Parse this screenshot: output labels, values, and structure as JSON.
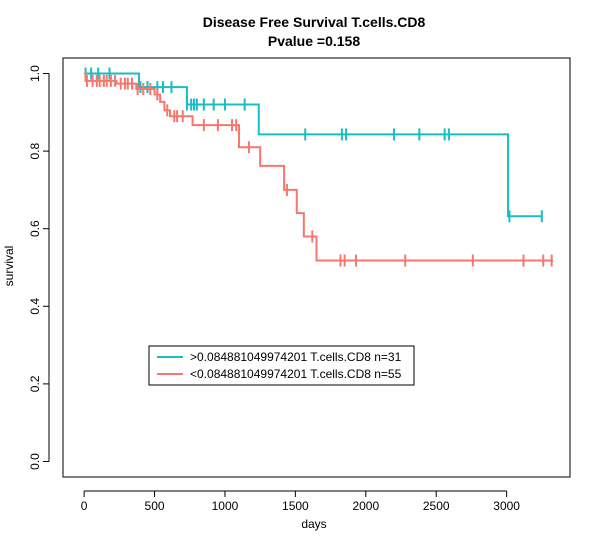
{
  "chart_data": {
    "type": "line",
    "title": "Disease Free Survival T.cells.CD8",
    "subtitle": "Pvalue =0.158",
    "xlabel": "days",
    "ylabel": "survival",
    "xlim": [
      -150,
      3450
    ],
    "ylim": [
      -0.04,
      1.04
    ],
    "x_ticks": [
      0,
      500,
      1000,
      1500,
      2000,
      2500,
      3000
    ],
    "x_tick_labels": [
      "0",
      "500",
      "1000",
      "1500",
      "2000",
      "2500",
      "3000"
    ],
    "y_ticks": [
      0.0,
      0.2,
      0.4,
      0.6,
      0.8,
      1.0
    ],
    "y_tick_labels": [
      "0.0",
      "0.2",
      "0.4",
      "0.6",
      "0.8",
      "1.0"
    ],
    "grid": false,
    "legend_position": "lower-left",
    "series": [
      {
        "name": ">0.084881049974201 T.cells.CD8 n=31",
        "color": "#17BEC4",
        "steps": [
          [
            0,
            1.0
          ],
          [
            390,
            0.965
          ],
          [
            730,
            0.92
          ],
          [
            1240,
            0.843
          ],
          [
            3010,
            0.632
          ],
          [
            3250,
            0.632
          ]
        ],
        "censor_times": [
          10,
          50,
          100,
          180,
          400,
          450,
          520,
          560,
          620,
          730,
          760,
          780,
          800,
          850,
          920,
          1000,
          1140,
          1570,
          1830,
          1860,
          2200,
          2380,
          2560,
          2590,
          3020,
          3250
        ]
      },
      {
        "name": "<0.084881049974201 T.cells.CD8 n=55",
        "color": "#F8766D",
        "steps": [
          [
            0,
            1.0
          ],
          [
            10,
            0.981
          ],
          [
            230,
            0.974
          ],
          [
            370,
            0.96
          ],
          [
            500,
            0.946
          ],
          [
            540,
            0.927
          ],
          [
            570,
            0.905
          ],
          [
            610,
            0.89
          ],
          [
            770,
            0.867
          ],
          [
            1100,
            0.81
          ],
          [
            1250,
            0.762
          ],
          [
            1420,
            0.7
          ],
          [
            1510,
            0.64
          ],
          [
            1560,
            0.58
          ],
          [
            1650,
            0.518
          ],
          [
            3330,
            0.518
          ]
        ],
        "censor_times": [
          20,
          60,
          90,
          110,
          140,
          160,
          190,
          220,
          260,
          290,
          310,
          340,
          380,
          420,
          470,
          520,
          590,
          640,
          660,
          700,
          850,
          950,
          1050,
          1080,
          1170,
          1440,
          1620,
          1820,
          1850,
          1930,
          2280,
          2760,
          3120,
          3260,
          3320
        ]
      }
    ]
  }
}
